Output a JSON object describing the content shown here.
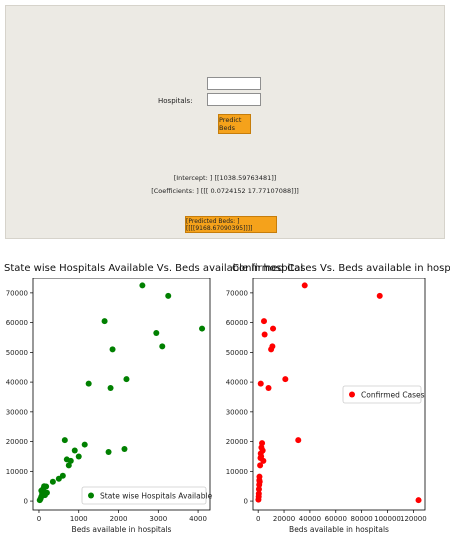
{
  "form": {
    "hospitals_label": "Hospitals:",
    "input1_value": "",
    "input2_value": "",
    "predict_button": "Predict Beds",
    "intercept_text": "[Intercept: ] [[1038.59763481]]",
    "coefficients_text": "[Coefficients: ] [[[ 0.0724152  17.77107088]]]",
    "predicted_text": "[Predicted Beds: ] [[[[9168.67090395]]]]"
  },
  "colors": {
    "panel_bg": "#eceae4",
    "button": "#f5a21b",
    "green_series": "#008000",
    "red_series": "#ff0000"
  },
  "chart_data": [
    {
      "type": "scatter",
      "title": "State wise Hospitals Available Vs. Beds available in hospital",
      "xlabel": "Beds available in hospitals",
      "ylabel": "",
      "xlim": [
        -150,
        4300
      ],
      "ylim": [
        -3000,
        75000
      ],
      "xticks": [
        0,
        1000,
        2000,
        3000,
        4000
      ],
      "yticks": [
        0,
        10000,
        20000,
        30000,
        40000,
        50000,
        60000,
        70000
      ],
      "legend": "bottom-right",
      "series": [
        {
          "name": "State wise Hospitals Available",
          "color": "#008000",
          "points": [
            [
              20,
              300
            ],
            [
              40,
              800
            ],
            [
              60,
              1500
            ],
            [
              80,
              2400
            ],
            [
              100,
              3200
            ],
            [
              110,
              4200
            ],
            [
              130,
              5000
            ],
            [
              60,
              3500
            ],
            [
              150,
              2000
            ],
            [
              180,
              4900
            ],
            [
              200,
              2800
            ],
            [
              350,
              6500
            ],
            [
              500,
              7500
            ],
            [
              600,
              8500
            ],
            [
              650,
              20500
            ],
            [
              700,
              14000
            ],
            [
              750,
              12000
            ],
            [
              800,
              13500
            ],
            [
              900,
              17000
            ],
            [
              1000,
              15000
            ],
            [
              1150,
              19000
            ],
            [
              1250,
              39500
            ],
            [
              1650,
              60500
            ],
            [
              1750,
              16500
            ],
            [
              1800,
              38000
            ],
            [
              1850,
              51000
            ],
            [
              2150,
              17500
            ],
            [
              2200,
              41000
            ],
            [
              2600,
              72500
            ],
            [
              2950,
              56500
            ],
            [
              3100,
              52000
            ],
            [
              3250,
              69000
            ],
            [
              4100,
              58000
            ]
          ]
        }
      ]
    },
    {
      "type": "scatter",
      "title": "Confirmed Cases Vs. Beds available in hospitals",
      "xlabel": "Beds available in hospitals",
      "ylabel": "",
      "xlim": [
        -4000,
        129000
      ],
      "ylim": [
        -3000,
        75000
      ],
      "xticks": [
        0,
        20000,
        40000,
        60000,
        80000,
        100000,
        120000
      ],
      "yticks": [
        0,
        10000,
        20000,
        30000,
        40000,
        50000,
        60000,
        70000
      ],
      "legend": "center-right",
      "series": [
        {
          "name": "Confirmed Cases",
          "color": "#ff0000",
          "points": [
            [
              200,
              500
            ],
            [
              400,
              1500
            ],
            [
              500,
              2500
            ],
            [
              600,
              4000
            ],
            [
              800,
              5500
            ],
            [
              900,
              7000
            ],
            [
              1000,
              8200
            ],
            [
              1200,
              6500
            ],
            [
              1500,
              12000
            ],
            [
              1800,
              14500
            ],
            [
              2000,
              16000
            ],
            [
              2300,
              15000
            ],
            [
              2500,
              18000
            ],
            [
              3000,
              19500
            ],
            [
              3500,
              17000
            ],
            [
              4000,
              13500
            ],
            [
              4500,
              60500
            ],
            [
              5000,
              56000
            ],
            [
              2000,
              39500
            ],
            [
              8000,
              38000
            ],
            [
              10000,
              51000
            ],
            [
              11000,
              52000
            ],
            [
              11500,
              58000
            ],
            [
              21000,
              41000
            ],
            [
              31000,
              20500
            ],
            [
              36000,
              72500
            ],
            [
              94000,
              69000
            ],
            [
              124000,
              300
            ]
          ]
        }
      ]
    }
  ]
}
